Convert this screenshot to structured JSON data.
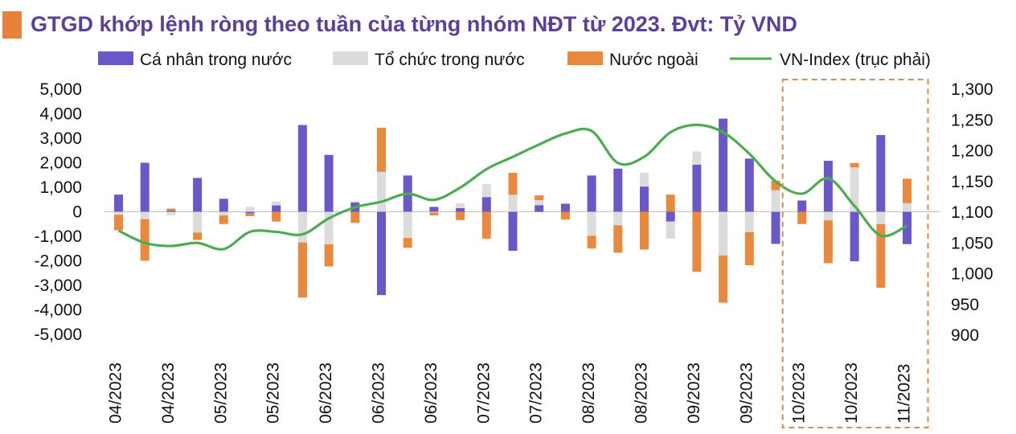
{
  "title": "GTGD khớp lệnh ròng theo tuần của từng nhóm NĐT từ 2023. Đvt: Tỷ VND",
  "colors": {
    "individual": "#6a57c8",
    "institution": "#dcdcdc",
    "foreign": "#e8893e",
    "vnindex": "#4cad50",
    "accent": "#e8823a",
    "title": "#5b3f9a",
    "highlight_box": "#e8893e"
  },
  "chart_data": {
    "type": "bar",
    "stacked": true,
    "legend": [
      "Cá nhân trong nước",
      "Tổ chức trong nước",
      "Nước ngoài",
      "VN-Index (trục phải)"
    ],
    "legend_position": "top",
    "x_tick_labels": [
      "04/2023",
      "04/2023",
      "05/2023",
      "05/2023",
      "06/2023",
      "06/2023",
      "06/2023",
      "07/2023",
      "07/2023",
      "08/2023",
      "08/2023",
      "09/2023",
      "09/2023",
      "10/2023",
      "10/2023",
      "11/2023"
    ],
    "y_left": {
      "ticks": [
        "5,000",
        "4,000",
        "3,000",
        "2,000",
        "1,000",
        "0",
        "-1,000",
        "-2,000",
        "-3,000",
        "-4,000",
        "-5,000"
      ],
      "range": [
        -5000,
        5000
      ]
    },
    "y_right": {
      "ticks": [
        "1,300",
        "1,250",
        "1,200",
        "1,150",
        "1,100",
        "1,050",
        "1,000",
        "950",
        "900"
      ],
      "range": [
        900,
        1300
      ]
    },
    "series": [
      {
        "name": "Cá nhân trong nước",
        "axis": "left",
        "values": [
          700,
          2000,
          50,
          1380,
          530,
          -50,
          260,
          3540,
          2320,
          380,
          -3400,
          1480,
          200,
          150,
          600,
          -1590,
          270,
          330,
          1480,
          1760,
          1030,
          -400,
          1920,
          3800,
          2170,
          -1310,
          460,
          2080,
          -2020,
          3130,
          -1320
        ]
      },
      {
        "name": "Tổ chức trong nước",
        "axis": "left",
        "values": [
          -120,
          -300,
          -150,
          -850,
          -150,
          200,
          160,
          -1250,
          -1330,
          50,
          1630,
          -1070,
          -30,
          200,
          530,
          690,
          200,
          0,
          -980,
          -550,
          570,
          -700,
          540,
          -1780,
          -830,
          880,
          0,
          -350,
          1810,
          -500,
          350
        ]
      },
      {
        "name": "Nước ngoài",
        "axis": "left",
        "values": [
          -630,
          -1700,
          80,
          -300,
          -350,
          -130,
          -400,
          -2250,
          -900,
          -450,
          1800,
          -400,
          -120,
          -340,
          -1100,
          900,
          200,
          -320,
          -520,
          -1120,
          -1540,
          700,
          -2450,
          -1930,
          -1350,
          390,
          -500,
          -1750,
          180,
          -2600,
          1000
        ]
      },
      {
        "name": "VN-Index (trục phải)",
        "axis": "right",
        "type": "line",
        "values": [
          1070,
          1050,
          1045,
          1050,
          1040,
          1068,
          1068,
          1064,
          1090,
          1108,
          1117,
          1130,
          1120,
          1140,
          1170,
          1190,
          1210,
          1228,
          1232,
          1180,
          1190,
          1230,
          1242,
          1230,
          1195,
          1150,
          1130,
          1155,
          1110,
          1062,
          1078
        ]
      }
    ],
    "highlight_range": {
      "from_index": 26,
      "to_index": 30
    }
  }
}
